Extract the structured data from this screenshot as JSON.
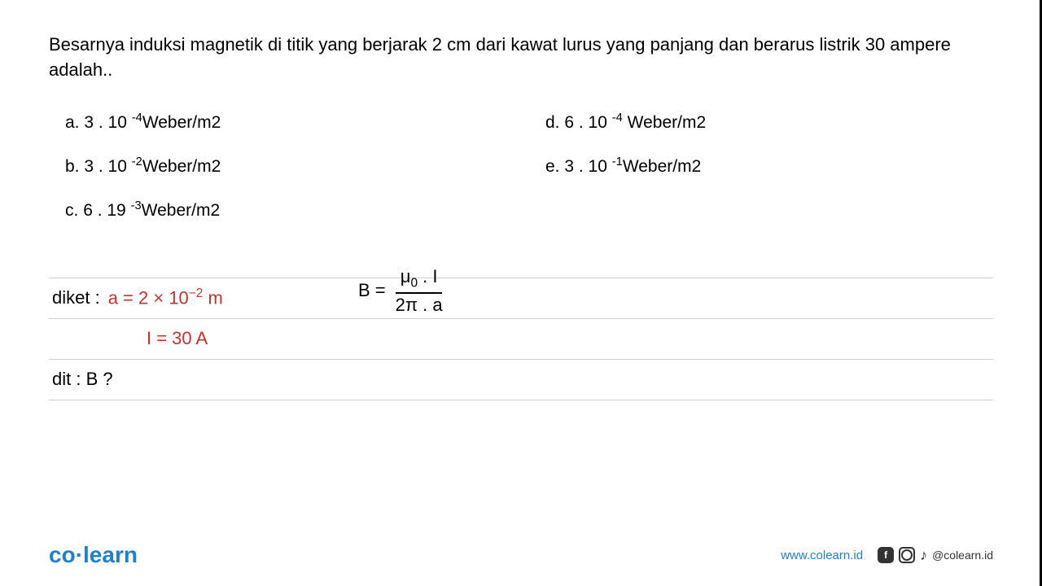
{
  "question": "Besarnya induksi magnetik di titik yang berjarak 2 cm dari kawat lurus yang panjang dan berarus listrik 30 ampere adalah..",
  "options": {
    "a": {
      "label": "a.",
      "coef": "3 . 10",
      "exp": "-4",
      "unit": "Weber/m2"
    },
    "b": {
      "label": "b.",
      "coef": "3 . 10",
      "exp": "-2",
      "unit": "Weber/m2"
    },
    "c": {
      "label": "c.",
      "coef": "6 . 19",
      "exp": "-3",
      "unit": "Weber/m2"
    },
    "d": {
      "label": "d.",
      "coef": "6 . 10",
      "exp": "-4",
      "unit": " Weber/m2"
    },
    "e": {
      "label": "e.",
      "coef": "3 . 10",
      "exp": "-1",
      "unit": "Weber/m2"
    }
  },
  "work": {
    "diket_label": "diket :",
    "a_value_prefix": "a = 2  × 10",
    "a_value_exp": "−2",
    "a_value_suffix": " m",
    "I_value": "I = 30 A",
    "dit": "dit : B ?",
    "formula_left": "B = ",
    "formula_num_mu": "μ",
    "formula_num_mu_sub": "0",
    "formula_num_rest": " . I",
    "formula_den": "2π . a"
  },
  "footer": {
    "logo_co": "co",
    "logo_dot": "·",
    "logo_learn": "learn",
    "url": "www.colearn.id",
    "handle": "@colearn.id"
  },
  "colors": {
    "red": "#c9302c",
    "blue": "#1e7fd6",
    "text": "#000000",
    "rule": "#d0d0d0"
  }
}
